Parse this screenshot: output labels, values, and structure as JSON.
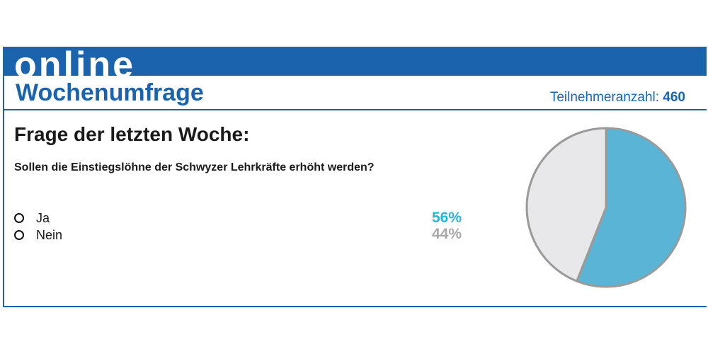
{
  "header": {
    "online_label": "online",
    "title": "Wochenumfrage",
    "participants_label": "Teilnehmeranzahl:",
    "participants_count": "460"
  },
  "poll": {
    "heading": "Frage der letzten Woche:",
    "question": "Sollen die Einstiegslöhne der Schwyzer Lehrkräfte erhöht werden?",
    "options": [
      {
        "label": "Ja",
        "percent_label": "56%",
        "color": "#2bb3d6"
      },
      {
        "label": "Nein",
        "percent_label": "44%",
        "color": "#a8a8a8"
      }
    ]
  },
  "colors": {
    "brand_blue": "#1c63ae",
    "pie_yes": "#5ab4d6",
    "pie_no": "#e8e8ea",
    "pie_outline": "#9a9a9a"
  },
  "chart_data": {
    "type": "pie",
    "categories": [
      "Ja",
      "Nein"
    ],
    "values": [
      56,
      44
    ],
    "colors": [
      "#5ab4d6",
      "#e8e8ea"
    ]
  }
}
